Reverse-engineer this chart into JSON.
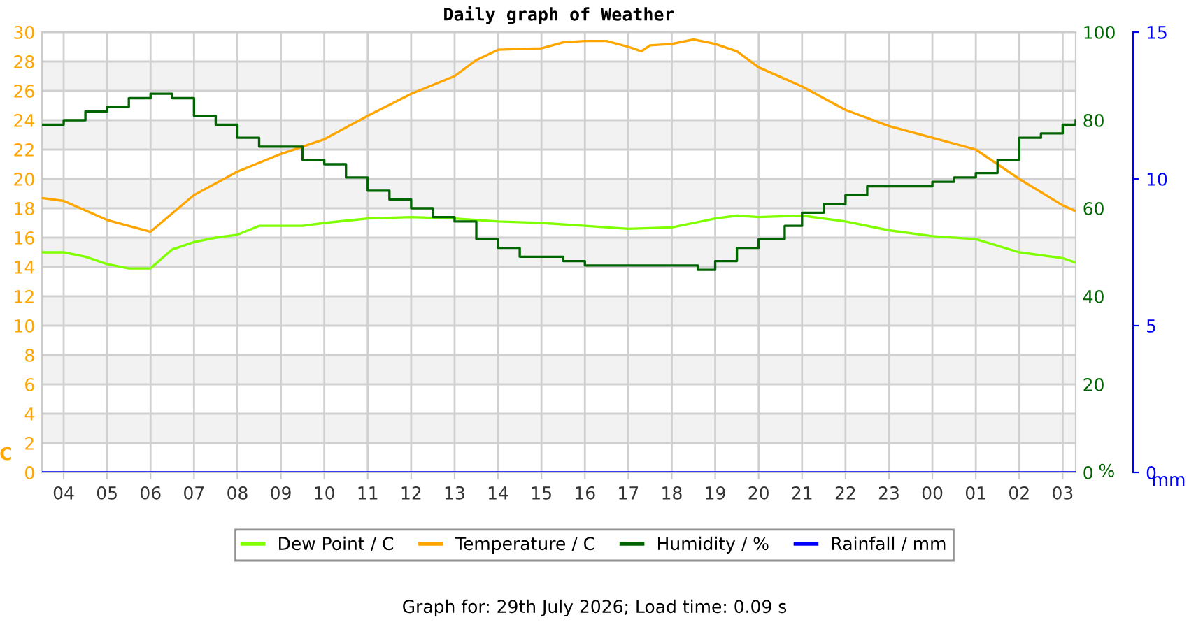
{
  "chart_data": {
    "type": "line",
    "title": "Daily graph of Weather",
    "ylabel": "C",
    "y2label": "%",
    "y3label": "mm",
    "xlim": [
      "2026-07-29T03:30",
      "2026-07-30T03:18"
    ],
    "xticks": [
      {
        "value": "2026-07-29T04:00",
        "label": "04"
      },
      {
        "value": "2026-07-29T05:00",
        "label": "05"
      },
      {
        "value": "2026-07-29T06:00",
        "label": "06"
      },
      {
        "value": "2026-07-29T07:00",
        "label": "07"
      },
      {
        "value": "2026-07-29T08:00",
        "label": "08"
      },
      {
        "value": "2026-07-29T09:00",
        "label": "09"
      },
      {
        "value": "2026-07-29T10:00",
        "label": "10"
      },
      {
        "value": "2026-07-29T11:00",
        "label": "11"
      },
      {
        "value": "2026-07-29T12:00",
        "label": "12"
      },
      {
        "value": "2026-07-29T13:00",
        "label": "13"
      },
      {
        "value": "2026-07-29T14:00",
        "label": "14"
      },
      {
        "value": "2026-07-29T15:00",
        "label": "15"
      },
      {
        "value": "2026-07-29T16:00",
        "label": "16"
      },
      {
        "value": "2026-07-29T17:00",
        "label": "17"
      },
      {
        "value": "2026-07-29T18:00",
        "label": "18"
      },
      {
        "value": "2026-07-29T19:00",
        "label": "19"
      },
      {
        "value": "2026-07-29T20:00",
        "label": "20"
      },
      {
        "value": "2026-07-29T21:00",
        "label": "21"
      },
      {
        "value": "2026-07-29T22:00",
        "label": "22"
      },
      {
        "value": "2026-07-29T23:00",
        "label": "23"
      },
      {
        "value": "2026-07-30T00:00",
        "label": "00"
      },
      {
        "value": "2026-07-30T01:00",
        "label": "01"
      },
      {
        "value": "2026-07-30T02:00",
        "label": "02"
      },
      {
        "value": "2026-07-30T03:00",
        "label": "03"
      }
    ],
    "ylim": [
      0,
      30
    ],
    "yticks": [
      0,
      2,
      4,
      6,
      8,
      10,
      12,
      14,
      16,
      18,
      20,
      22,
      24,
      26,
      28,
      30
    ],
    "y2lim": [
      0,
      100
    ],
    "y2ticks": [
      0,
      20,
      40,
      60,
      80,
      100
    ],
    "y3lim": [
      0,
      15
    ],
    "y3ticks": [
      0,
      5,
      10,
      15
    ],
    "grid": true,
    "legend": "bottom",
    "series": [
      {
        "name": "Dew Point / C",
        "color": "#80ff00",
        "x": [
          "2026-07-29T03:30",
          "2026-07-29T04:00",
          "2026-07-29T04:30",
          "2026-07-29T05:00",
          "2026-07-29T05:30",
          "2026-07-29T06:00",
          "2026-07-29T06:30",
          "2026-07-29T07:00",
          "2026-07-29T07:30",
          "2026-07-29T08:00",
          "2026-07-29T08:30",
          "2026-07-29T09:00",
          "2026-07-29T09:30",
          "2026-07-29T10:00",
          "2026-07-29T11:00",
          "2026-07-29T12:00",
          "2026-07-29T13:00",
          "2026-07-29T14:00",
          "2026-07-29T15:00",
          "2026-07-29T16:00",
          "2026-07-29T17:00",
          "2026-07-29T18:00",
          "2026-07-29T19:00",
          "2026-07-29T19:30",
          "2026-07-29T20:00",
          "2026-07-29T21:00",
          "2026-07-29T22:00",
          "2026-07-29T23:00",
          "2026-07-30T00:00",
          "2026-07-30T01:00",
          "2026-07-30T02:00",
          "2026-07-30T03:00",
          "2026-07-30T03:18"
        ],
        "values": [
          15.0,
          15.0,
          14.7,
          14.2,
          13.9,
          13.9,
          15.2,
          15.7,
          16.0,
          16.2,
          16.8,
          16.8,
          16.8,
          17.0,
          17.3,
          17.4,
          17.3,
          17.1,
          17.0,
          16.8,
          16.6,
          16.7,
          17.3,
          17.5,
          17.4,
          17.5,
          17.1,
          16.5,
          16.1,
          15.9,
          15.0,
          14.6,
          14.3
        ]
      },
      {
        "name": "Temperature / C",
        "color": "#ffa500",
        "x": [
          "2026-07-29T03:30",
          "2026-07-29T04:00",
          "2026-07-29T05:00",
          "2026-07-29T06:00",
          "2026-07-29T07:00",
          "2026-07-29T08:00",
          "2026-07-29T09:00",
          "2026-07-29T10:00",
          "2026-07-29T11:00",
          "2026-07-29T12:00",
          "2026-07-29T13:00",
          "2026-07-29T13:30",
          "2026-07-29T14:00",
          "2026-07-29T15:00",
          "2026-07-29T15:30",
          "2026-07-29T16:00",
          "2026-07-29T16:30",
          "2026-07-29T17:00",
          "2026-07-29T17:18",
          "2026-07-29T17:30",
          "2026-07-29T18:00",
          "2026-07-29T18:30",
          "2026-07-29T19:00",
          "2026-07-29T19:30",
          "2026-07-29T20:00",
          "2026-07-29T21:00",
          "2026-07-29T22:00",
          "2026-07-29T23:00",
          "2026-07-30T00:00",
          "2026-07-30T01:00",
          "2026-07-30T02:00",
          "2026-07-30T03:00",
          "2026-07-30T03:18"
        ],
        "values": [
          18.7,
          18.5,
          17.2,
          16.4,
          18.9,
          20.5,
          21.7,
          22.7,
          24.3,
          25.8,
          27.0,
          28.1,
          28.8,
          28.9,
          29.3,
          29.4,
          29.4,
          29.0,
          28.7,
          29.1,
          29.2,
          29.5,
          29.2,
          28.7,
          27.6,
          26.3,
          24.7,
          23.6,
          22.8,
          22.0,
          20.0,
          18.2,
          17.8
        ]
      },
      {
        "name": "Humidity / %",
        "color": "#006400",
        "type": "step",
        "axis": "y2",
        "x": [
          "2026-07-29T03:30",
          "2026-07-29T04:00",
          "2026-07-29T04:30",
          "2026-07-29T05:00",
          "2026-07-29T05:30",
          "2026-07-29T06:00",
          "2026-07-29T06:30",
          "2026-07-29T07:00",
          "2026-07-29T07:30",
          "2026-07-29T08:00",
          "2026-07-29T08:30",
          "2026-07-29T09:00",
          "2026-07-29T09:30",
          "2026-07-29T10:00",
          "2026-07-29T10:30",
          "2026-07-29T11:00",
          "2026-07-29T11:30",
          "2026-07-29T12:00",
          "2026-07-29T12:30",
          "2026-07-29T13:00",
          "2026-07-29T13:30",
          "2026-07-29T14:00",
          "2026-07-29T14:30",
          "2026-07-29T15:00",
          "2026-07-29T15:30",
          "2026-07-29T16:00",
          "2026-07-29T17:00",
          "2026-07-29T18:00",
          "2026-07-29T18:36",
          "2026-07-29T19:00",
          "2026-07-29T19:30",
          "2026-07-29T20:00",
          "2026-07-29T20:36",
          "2026-07-29T21:00",
          "2026-07-29T21:30",
          "2026-07-29T22:00",
          "2026-07-29T22:30",
          "2026-07-29T23:00",
          "2026-07-30T00:00",
          "2026-07-30T00:30",
          "2026-07-30T01:00",
          "2026-07-30T01:30",
          "2026-07-30T02:00",
          "2026-07-30T02:30",
          "2026-07-30T03:00",
          "2026-07-30T03:18"
        ],
        "values": [
          79,
          80,
          82,
          83,
          85,
          86,
          85,
          81,
          79,
          76,
          74,
          74,
          71,
          70,
          67,
          64,
          62,
          60,
          58,
          57,
          53,
          51,
          49,
          49,
          48,
          47,
          47,
          47,
          46,
          48,
          51,
          53,
          56,
          59,
          61,
          63,
          65,
          65,
          66,
          67,
          68,
          71,
          76,
          77,
          79,
          80
        ]
      },
      {
        "name": "Rainfall / mm",
        "color": "#0000ff",
        "axis": "y3",
        "x": [
          "2026-07-29T03:30",
          "2026-07-30T03:18"
        ],
        "values": [
          0,
          0
        ]
      }
    ],
    "annotations": [
      "Graph for: 29th July 2026; Load time: 0.09 s"
    ]
  }
}
